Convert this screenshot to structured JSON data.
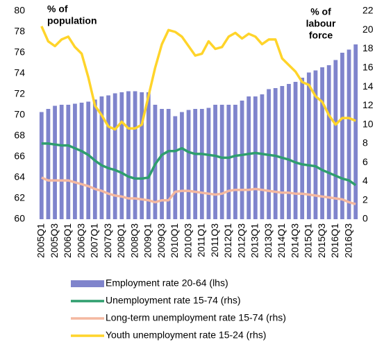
{
  "chart_data": {
    "type": "combo",
    "annotations": [
      [
        "% of",
        "population"
      ],
      [
        "% of",
        "labour",
        "force"
      ]
    ],
    "categories": [
      "2005Q1",
      null,
      "2005Q3",
      null,
      "2006Q1",
      null,
      "2006Q3",
      null,
      "2007Q1",
      null,
      "2007Q3",
      null,
      "2008Q1",
      null,
      "2008Q3",
      null,
      "2009Q1",
      null,
      "2009Q3",
      null,
      "2010Q1",
      null,
      "2010Q3",
      null,
      "2011Q1",
      null,
      "2011Q3",
      null,
      "2012Q1",
      null,
      "2012Q3",
      null,
      "2013Q1",
      null,
      "2013Q3",
      null,
      "2014Q1",
      null,
      "2014Q3",
      null,
      "2015Q1",
      null,
      "2015Q3",
      null,
      "2016Q1",
      null,
      "2016Q3",
      null
    ],
    "series": [
      {
        "name": "Employment rate 20-64 (lhs)",
        "type": "bar",
        "axis": "y",
        "color": "#7f84cc",
        "values": [
          70.3,
          70.6,
          70.9,
          71.0,
          71.0,
          71.1,
          71.2,
          71.3,
          71.5,
          71.8,
          71.9,
          72.1,
          72.2,
          72.3,
          72.3,
          72.2,
          72.2,
          71.0,
          70.6,
          70.6,
          69.9,
          70.3,
          70.5,
          70.6,
          70.6,
          70.7,
          71.0,
          71.0,
          71.0,
          71.0,
          71.4,
          71.8,
          71.8,
          72.0,
          72.5,
          72.6,
          72.8,
          73.0,
          73.2,
          73.6,
          74.1,
          74.3,
          74.6,
          74.8,
          75.3,
          76.0,
          76.3,
          76.8
        ]
      },
      {
        "name": "Unemployment rate 15-74 (rhs)",
        "type": "line",
        "axis": "y2",
        "color": "#2e9e6e",
        "values": [
          8.0,
          8.0,
          7.9,
          7.8,
          7.8,
          7.5,
          7.2,
          6.8,
          6.2,
          5.7,
          5.4,
          5.2,
          4.9,
          4.5,
          4.3,
          4.3,
          4.4,
          5.8,
          6.8,
          7.2,
          7.2,
          7.5,
          7.1,
          6.9,
          6.9,
          6.8,
          6.7,
          6.5,
          6.5,
          6.7,
          6.8,
          6.9,
          7.0,
          6.9,
          6.8,
          6.7,
          6.5,
          6.3,
          6.0,
          5.8,
          5.7,
          5.6,
          5.2,
          4.9,
          4.6,
          4.3,
          4.1,
          3.6
        ]
      },
      {
        "name": "Long-term unemployment rate 15-74 (rhs)",
        "type": "line",
        "axis": "y2",
        "color": "#f4b8a0",
        "values": [
          4.4,
          4.1,
          4.1,
          4.1,
          4.1,
          3.9,
          3.7,
          3.5,
          3.2,
          3.0,
          2.7,
          2.5,
          2.4,
          2.2,
          2.2,
          2.1,
          2.0,
          1.8,
          2.0,
          2.0,
          2.9,
          3.0,
          3.0,
          2.9,
          2.8,
          2.7,
          2.6,
          2.7,
          3.0,
          3.1,
          3.1,
          3.1,
          3.2,
          3.1,
          3.0,
          2.9,
          2.8,
          2.8,
          2.7,
          2.7,
          2.6,
          2.5,
          2.4,
          2.3,
          2.2,
          2.1,
          1.8,
          1.6
        ]
      },
      {
        "name": "Youth unemployment rate 15-24 (rhs)",
        "type": "line",
        "axis": "y2",
        "color": "#ffd42a",
        "values": [
          20.4,
          18.8,
          18.3,
          19.0,
          19.3,
          18.2,
          17.5,
          15.0,
          12.0,
          11.0,
          9.8,
          9.5,
          10.3,
          9.6,
          9.6,
          10.0,
          13.0,
          16.0,
          18.5,
          20.0,
          19.8,
          19.3,
          18.3,
          17.3,
          17.5,
          18.8,
          18.0,
          18.2,
          19.3,
          19.7,
          19.1,
          19.6,
          19.3,
          18.5,
          19.0,
          19.0,
          17.0,
          16.3,
          15.6,
          14.5,
          14.2,
          13.0,
          12.4,
          11.0,
          10.0,
          10.7,
          10.7,
          10.4
        ]
      }
    ],
    "ylim": [
      60,
      80
    ],
    "yticks": [
      60,
      62,
      64,
      66,
      68,
      70,
      72,
      74,
      76,
      78,
      80
    ],
    "y2lim": [
      0,
      22
    ],
    "y2ticks": [
      0,
      2,
      4,
      6,
      8,
      10,
      12,
      14,
      16,
      18,
      20,
      22
    ],
    "grid": false
  }
}
